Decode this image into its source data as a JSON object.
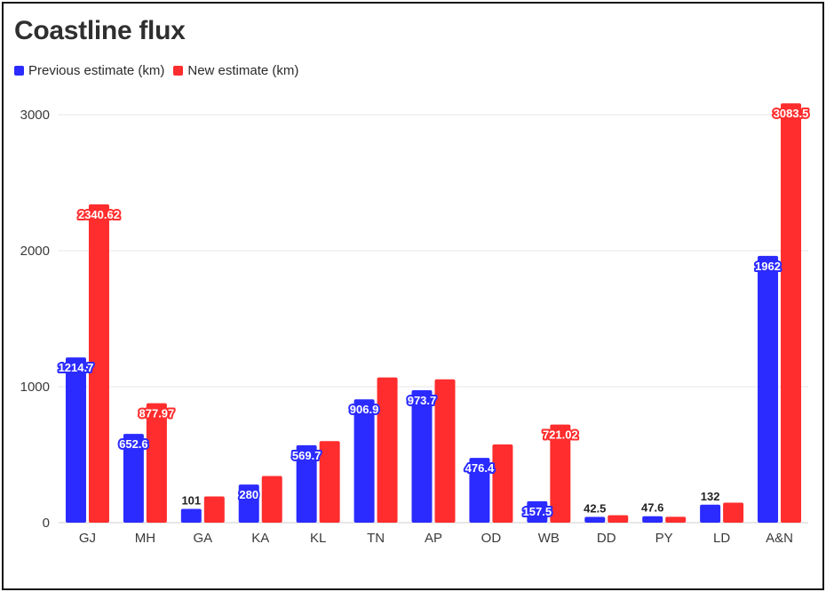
{
  "colors": {
    "previous": "#2b2bff",
    "new": "#ff2d2d"
  },
  "chart_data": {
    "type": "bar",
    "title": "Coastline flux",
    "categories": [
      "GJ",
      "MH",
      "GA",
      "KA",
      "KL",
      "TN",
      "AP",
      "OD",
      "WB",
      "DD",
      "PY",
      "LD",
      "A&N"
    ],
    "series": [
      {
        "name": "Previous estimate (km)",
        "values": [
          1214.7,
          652.6,
          101,
          280,
          569.7,
          906.9,
          973.7,
          476.4,
          157.5,
          42.5,
          47.6,
          132,
          1962
        ],
        "labels": [
          "1214.7",
          "652.6",
          "101",
          "280",
          "569.7",
          "906.9",
          "973.7",
          "476.4",
          "157.5",
          "42.5",
          "47.6",
          "132",
          "1962"
        ]
      },
      {
        "name": "New estimate (km)",
        "values": [
          2340.62,
          877.97,
          193,
          343,
          600,
          1068,
          1054,
          575,
          721.02,
          55,
          43,
          147,
          3083.5
        ],
        "labels": [
          "2340.62",
          "877.97",
          "",
          "",
          "",
          "",
          "",
          "",
          "721.02",
          "",
          "",
          "",
          "3083.5"
        ]
      }
    ],
    "y_ticks": [
      "0",
      "1000",
      "2000",
      "3000"
    ],
    "ylim": [
      0,
      3200
    ],
    "grid": true,
    "legend": "top-left"
  }
}
